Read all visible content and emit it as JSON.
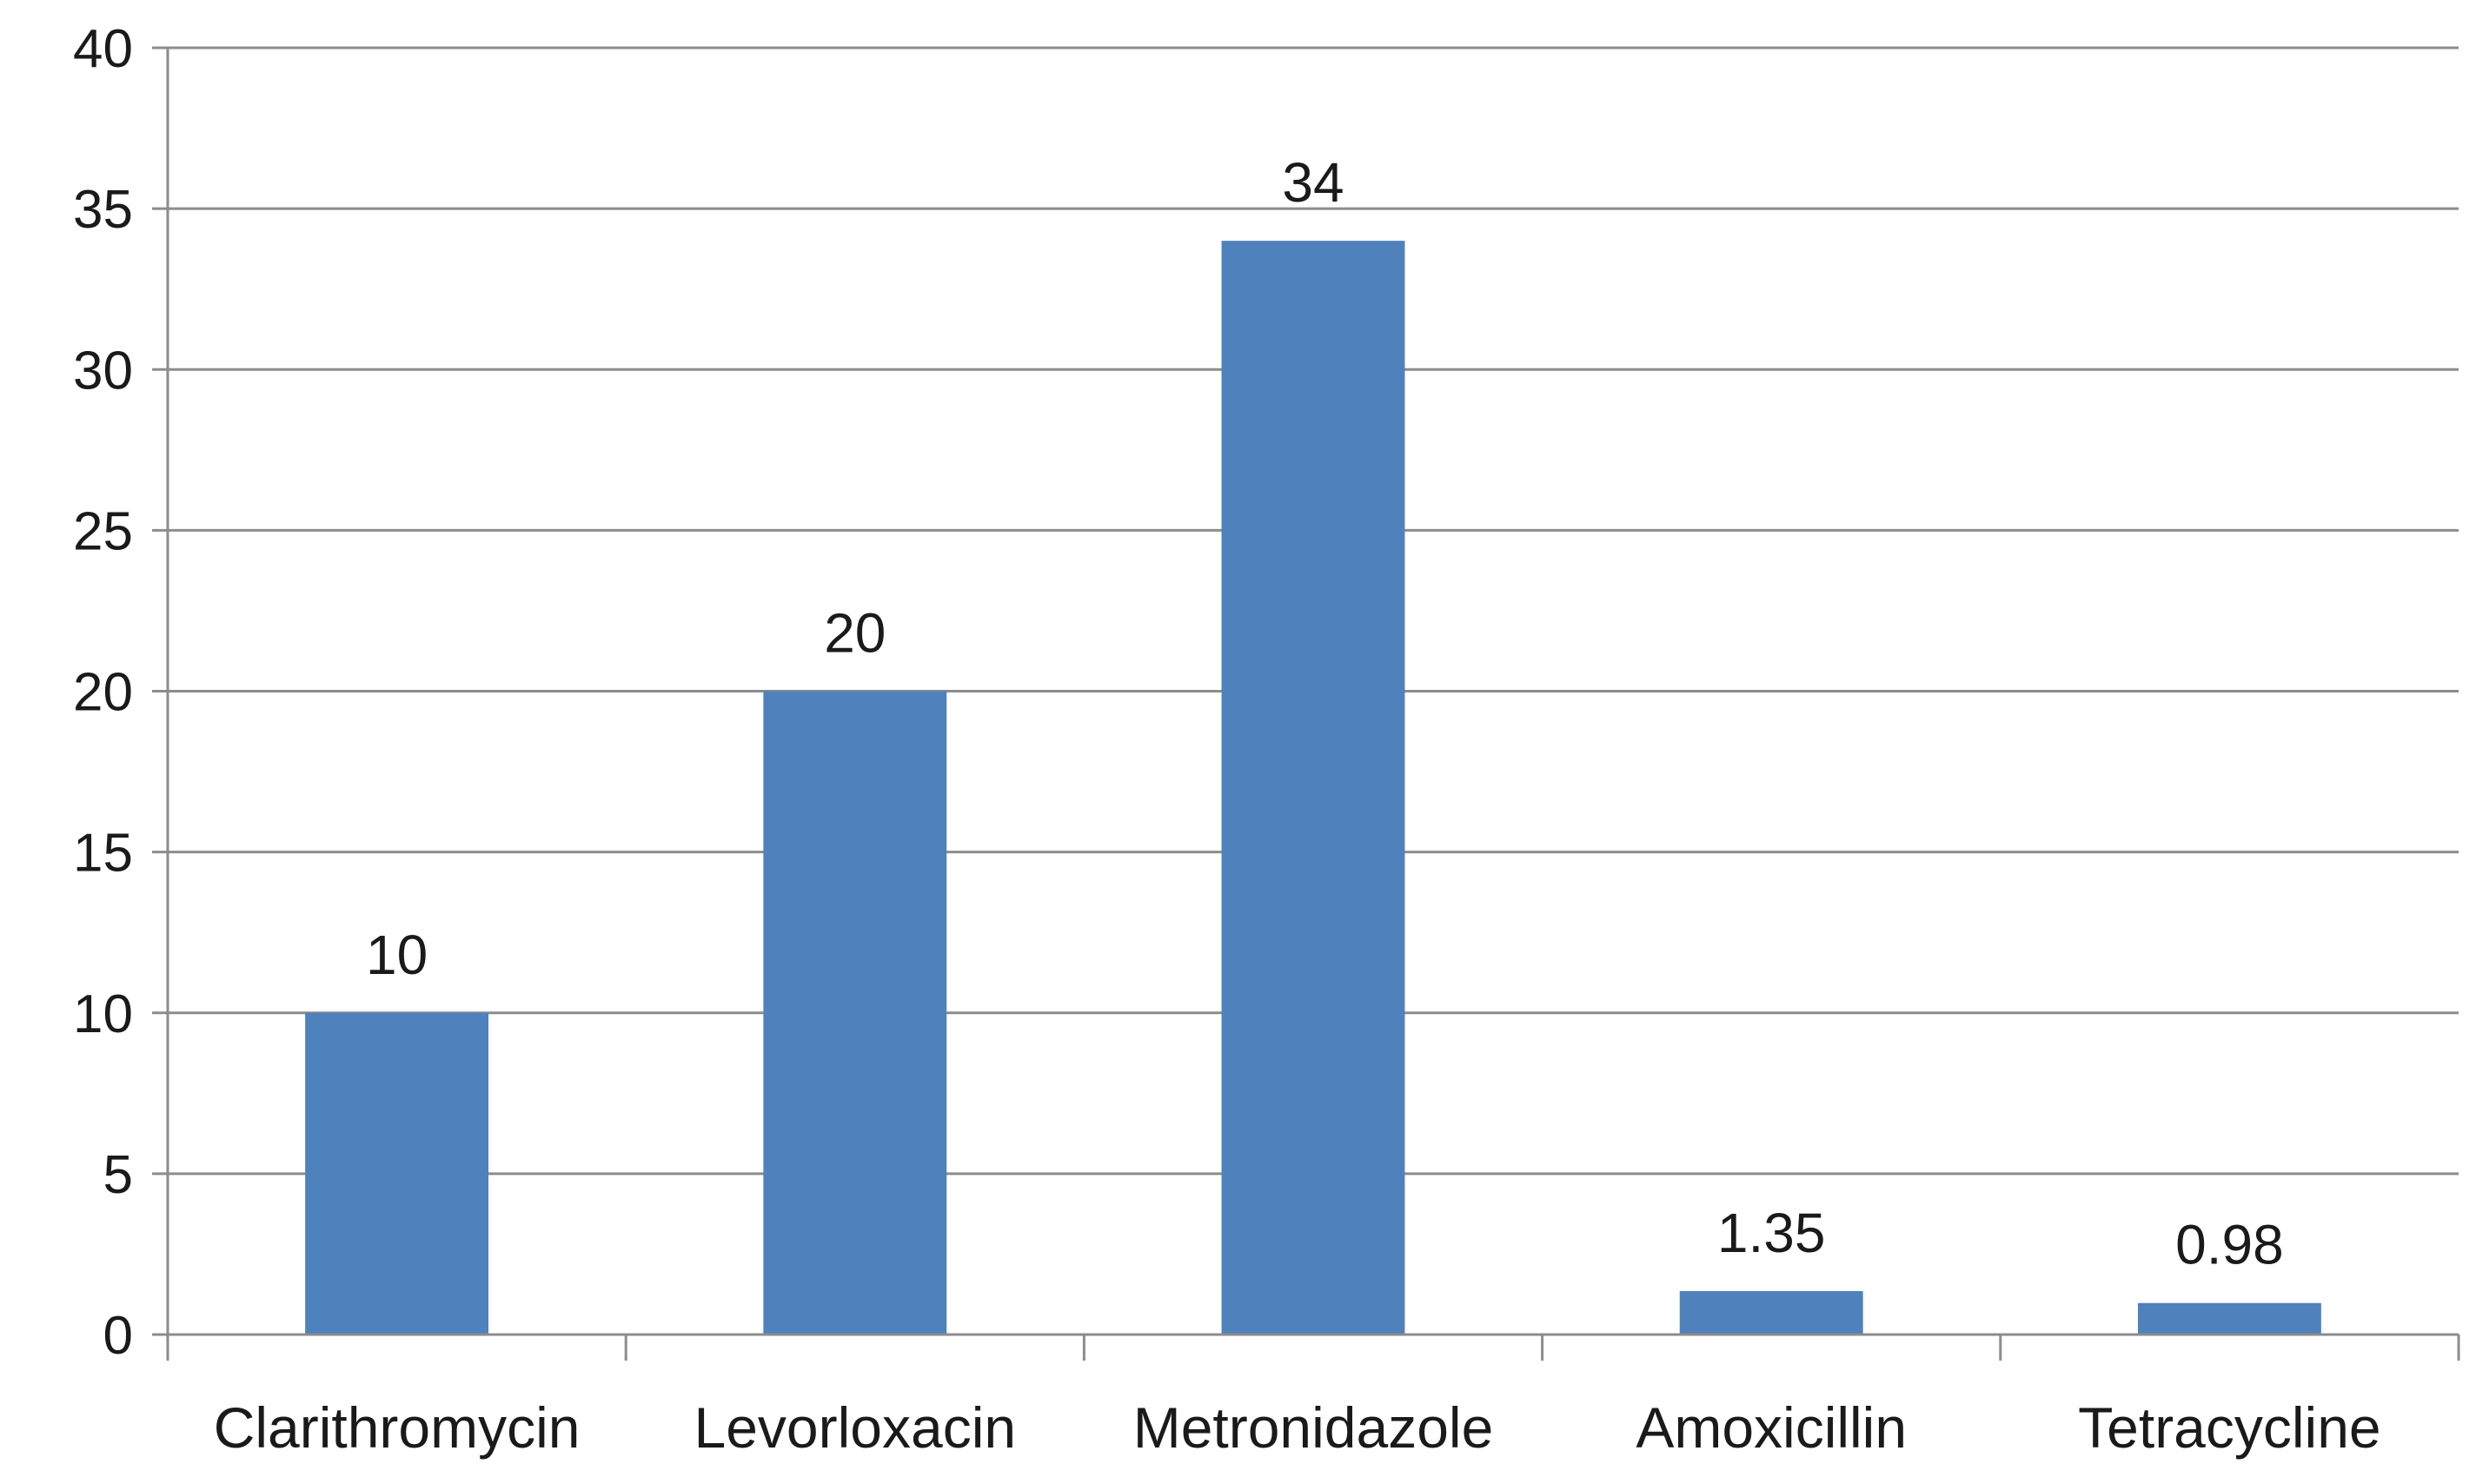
{
  "chart_data": {
    "type": "bar",
    "title": "",
    "xlabel": "",
    "ylabel": "",
    "categories": [
      "Clarithromycin",
      "Levorloxacin",
      "Metronidazole",
      "Amoxicillin",
      "Tetracycline"
    ],
    "values": [
      10,
      20,
      34,
      1.35,
      0.98
    ],
    "data_labels": [
      "10",
      "20",
      "34",
      "1.35",
      "0.98"
    ],
    "ylim": [
      0,
      40
    ],
    "yticks": [
      0,
      5,
      10,
      15,
      20,
      25,
      30,
      35,
      40
    ],
    "grid": true,
    "legend": "none",
    "bar_color": "#4f81bd"
  }
}
